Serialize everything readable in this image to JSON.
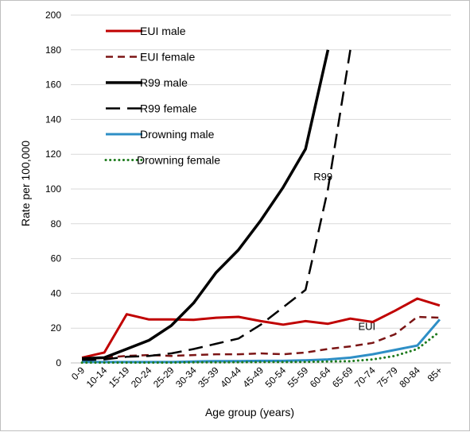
{
  "chart_data": {
    "type": "line",
    "title": "",
    "xlabel": "Age group (years)",
    "ylabel": "Rate per 100,000",
    "ylim": [
      0,
      200
    ],
    "yticks": [
      0,
      20,
      40,
      60,
      80,
      100,
      120,
      140,
      160,
      180,
      200
    ],
    "categories": [
      "0-9",
      "10-14",
      "15-19",
      "20-24",
      "25-29",
      "30-34",
      "35-39",
      "40-44",
      "45-49",
      "50-54",
      "55-59",
      "60-64",
      "65-69",
      "70-74",
      "75-79",
      "80-84",
      "85+"
    ],
    "grid": "horizontal",
    "legend_position": "top-left",
    "series": [
      {
        "name": "EUI male",
        "color": "#c00000",
        "style": "solid",
        "width": 3,
        "values": [
          3,
          6,
          28,
          25,
          25,
          24.8,
          26,
          26.5,
          24,
          22,
          24,
          22.5,
          25.5,
          23.5,
          30,
          37,
          33
        ]
      },
      {
        "name": "EUI female",
        "color": "#7b1515",
        "style": "dash",
        "width": 2.5,
        "values": [
          2,
          3,
          4,
          4.5,
          4,
          4.5,
          5,
          5,
          5.5,
          5,
          6,
          8,
          9.5,
          11.5,
          16.5,
          26.5,
          26
        ]
      },
      {
        "name": "R99 male",
        "color": "#000000",
        "style": "solid",
        "width": 3.5,
        "values": [
          2.5,
          3,
          8,
          13,
          21.5,
          34.5,
          52,
          65,
          82,
          101,
          123,
          180,
          null,
          null,
          null,
          null,
          null
        ]
      },
      {
        "name": "R99 female",
        "color": "#000000",
        "style": "longdash",
        "width": 2.5,
        "values": [
          1.5,
          2,
          3.5,
          4,
          5.5,
          8,
          11,
          14,
          22,
          32,
          42,
          100,
          180,
          null,
          null,
          null,
          null
        ]
      },
      {
        "name": "Drowning male",
        "color": "#2e8fc6",
        "style": "solid",
        "width": 3,
        "values": [
          0.5,
          0.5,
          0.5,
          0.5,
          0.5,
          0.8,
          1,
          1,
          1.2,
          1.2,
          1.5,
          2,
          3,
          5,
          7.5,
          10,
          25
        ]
      },
      {
        "name": "Drowning female",
        "color": "#1e7b1e",
        "style": "dot",
        "width": 3,
        "values": [
          0.2,
          0.2,
          0.2,
          0.2,
          0.2,
          0.3,
          0.3,
          0.4,
          0.5,
          0.5,
          0.6,
          0.8,
          1,
          2,
          4,
          8,
          18
        ]
      }
    ],
    "annotations": [
      {
        "text": "R99",
        "x": "55-59",
        "y": 105
      },
      {
        "text": "EUI",
        "x": "65-69",
        "y": 19
      }
    ]
  }
}
